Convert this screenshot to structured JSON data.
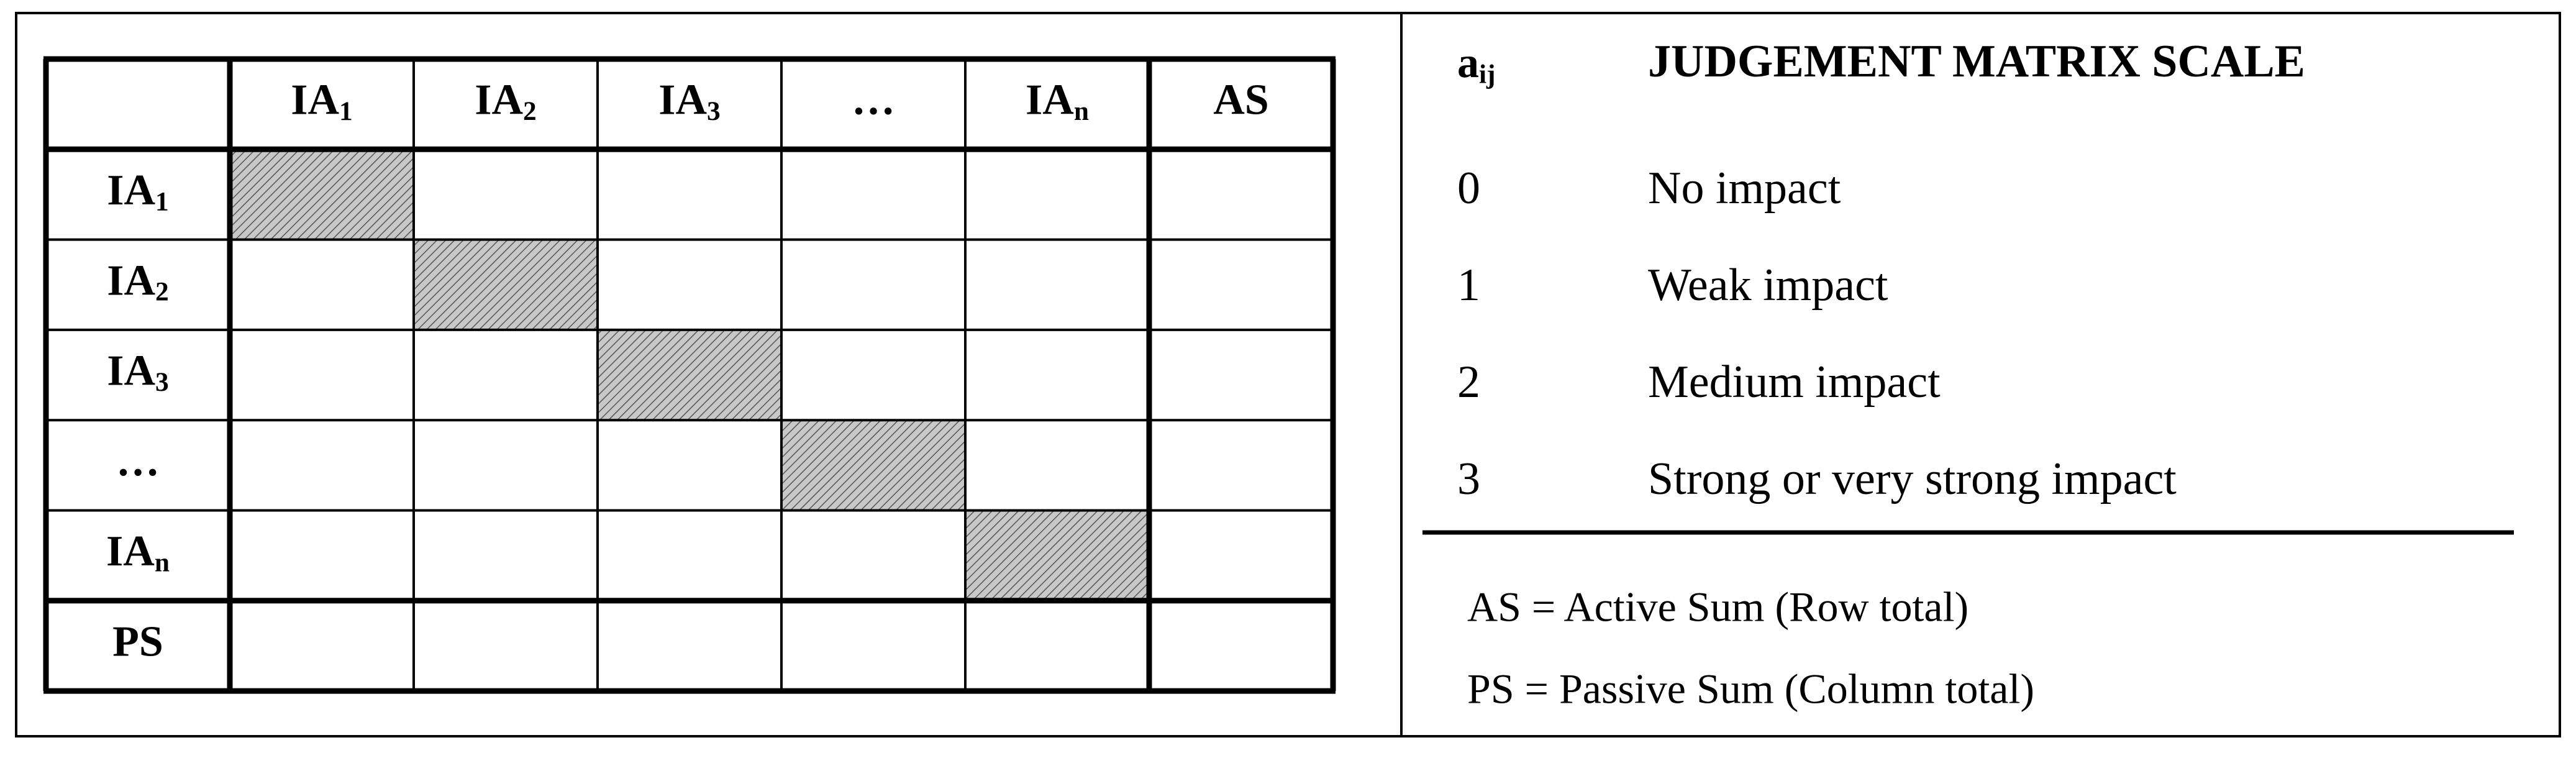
{
  "matrix": {
    "column_headers": [
      {
        "text": "IA",
        "sub": "1"
      },
      {
        "text": "IA",
        "sub": "2"
      },
      {
        "text": "IA",
        "sub": "3"
      },
      {
        "text": "…"
      },
      {
        "text": "IA",
        "sub": "n"
      },
      {
        "text": "AS"
      }
    ],
    "row_headers": [
      {
        "text": "IA",
        "sub": "1"
      },
      {
        "text": "IA",
        "sub": "2"
      },
      {
        "text": "IA",
        "sub": "3"
      },
      {
        "text": "…"
      },
      {
        "text": "IA",
        "sub": "n"
      },
      {
        "text": "PS"
      }
    ]
  },
  "scale": {
    "symbol": {
      "text": "a",
      "sub": "ij"
    },
    "title": "JUDGEMENT MATRIX SCALE",
    "rows": [
      [
        "0",
        "No impact"
      ],
      [
        "1",
        "Weak impact"
      ],
      [
        "2",
        "Medium impact"
      ],
      [
        "3",
        "Strong or very strong impact"
      ]
    ],
    "notes": [
      "AS = Active Sum (Row total)",
      "PS = Passive Sum (Column total)"
    ]
  }
}
